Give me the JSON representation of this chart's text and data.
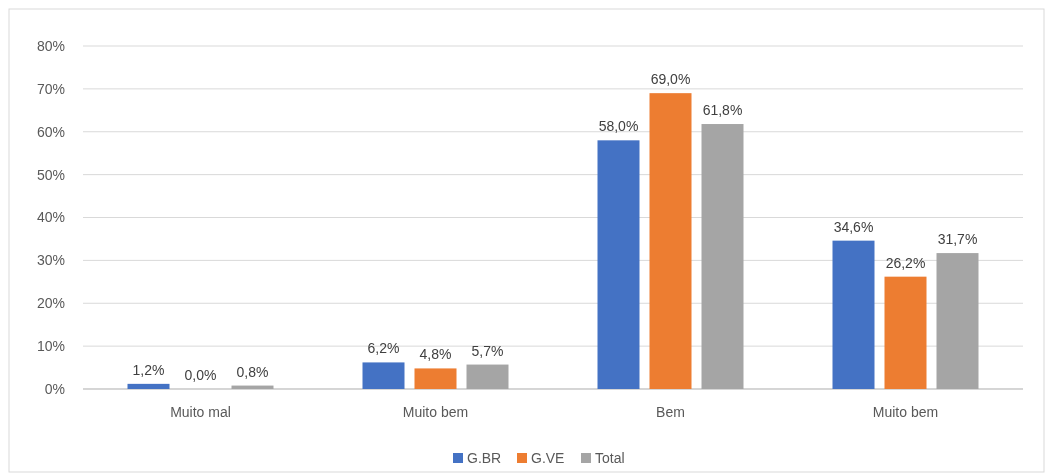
{
  "chart_data": {
    "type": "bar",
    "categories": [
      "Muito mal",
      "Muito bem",
      "Bem",
      "Muito bem"
    ],
    "series": [
      {
        "name": "G.BR",
        "color": "#4472c4",
        "values": [
          1.2,
          6.2,
          58.0,
          34.6
        ],
        "value_labels": [
          "1,2%",
          "6,2%",
          "58,0%",
          "34,6%"
        ]
      },
      {
        "name": "G.VE",
        "color": "#ed7d31",
        "values": [
          0.0,
          4.8,
          69.0,
          26.2
        ],
        "value_labels": [
          "0,0%",
          "4,8%",
          "69,0%",
          "26,2%"
        ]
      },
      {
        "name": "Total",
        "color": "#a5a5a5",
        "values": [
          0.8,
          5.7,
          61.8,
          31.7
        ],
        "value_labels": [
          "0,8%",
          "5,7%",
          "61,8%",
          "31,7%"
        ]
      }
    ],
    "ylim": [
      0,
      80
    ],
    "yticks": [
      {
        "value": 0,
        "label": "0%"
      },
      {
        "value": 10,
        "label": "10%"
      },
      {
        "value": 20,
        "label": "20%"
      },
      {
        "value": 30,
        "label": "30%"
      },
      {
        "value": 40,
        "label": "40%"
      },
      {
        "value": 50,
        "label": "50%"
      },
      {
        "value": 60,
        "label": "60%"
      },
      {
        "value": 70,
        "label": "70%"
      },
      {
        "value": 80,
        "label": "80%"
      }
    ],
    "grid": "y",
    "legend": "bottom"
  }
}
